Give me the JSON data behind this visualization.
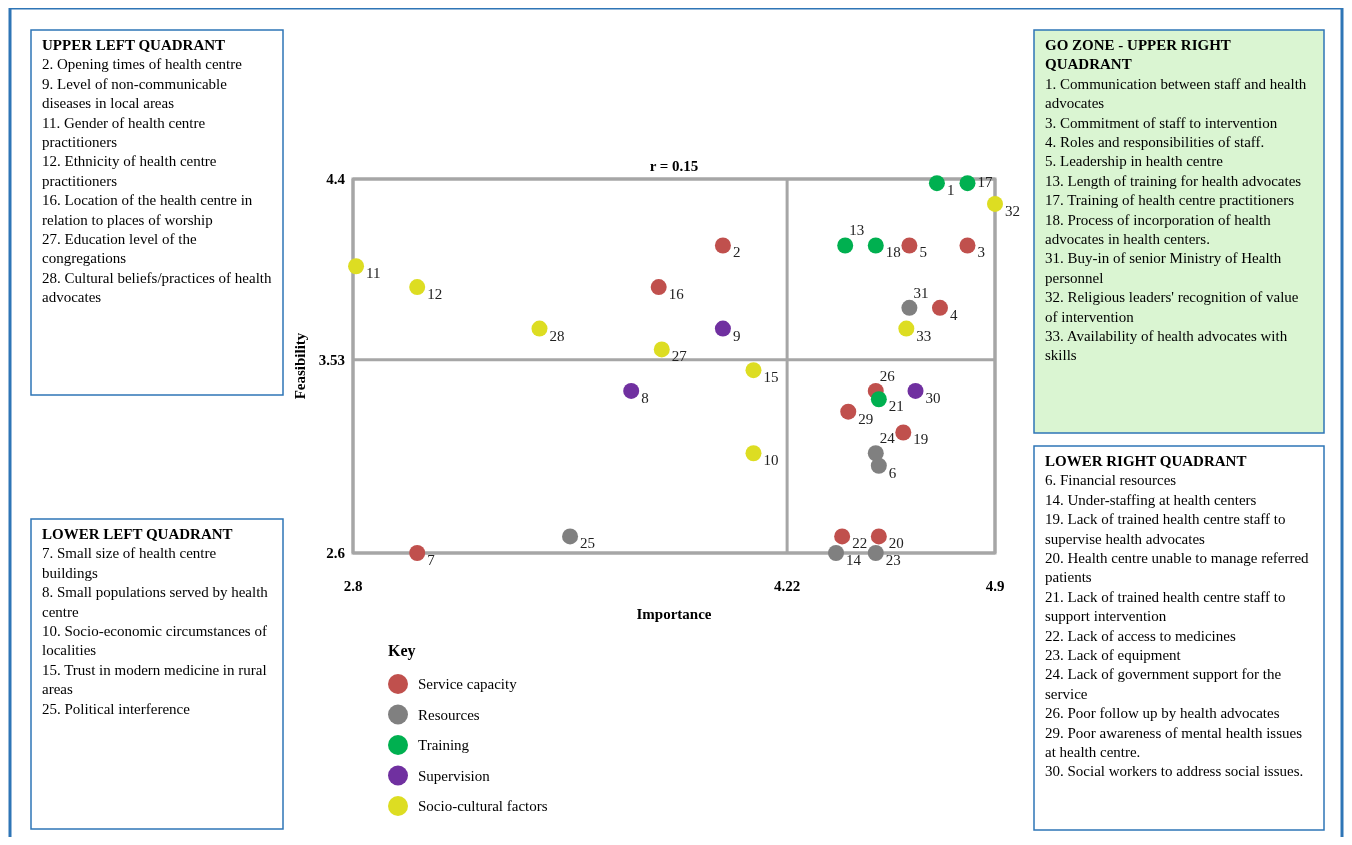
{
  "chart_data": [
    {
      "type": "scatter",
      "xlabel": "Importance",
      "ylabel": "Feasibility",
      "legend_title": "Key",
      "legend": "bottom left",
      "grid": true,
      "marker": "circle",
      "annotations": [
        "r = 0.15",
        {
          "text": "2",
          "x": 4.01,
          "y": 4.08
        },
        {
          "text": "3",
          "x": 4.81,
          "y": 4.08
        },
        {
          "text": "4",
          "x": 4.72,
          "y": 3.78
        },
        {
          "text": "5",
          "x": 4.62,
          "y": 4.08
        },
        {
          "text": "7",
          "x": 3.01,
          "y": 2.6
        },
        {
          "text": "16",
          "x": 3.8,
          "y": 3.88
        },
        {
          "text": "19",
          "x": 4.6,
          "y": 3.18
        },
        {
          "text": "20",
          "x": 4.52,
          "y": 2.68
        },
        {
          "text": "22",
          "x": 4.4,
          "y": 2.68
        },
        {
          "text": "26",
          "x": 4.51,
          "y": 3.38
        },
        {
          "text": "29",
          "x": 4.42,
          "y": 3.28
        },
        {
          "text": "6",
          "x": 4.52,
          "y": 3.02
        },
        {
          "text": "14",
          "x": 4.38,
          "y": 2.6
        },
        {
          "text": "23",
          "x": 4.51,
          "y": 2.6
        },
        {
          "text": "24",
          "x": 4.51,
          "y": 3.08
        },
        {
          "text": "25",
          "x": 3.51,
          "y": 2.68
        },
        {
          "text": "31",
          "x": 4.62,
          "y": 3.78
        },
        {
          "text": "1",
          "x": 4.71,
          "y": 4.38
        },
        {
          "text": "13",
          "x": 4.41,
          "y": 4.08
        },
        {
          "text": "17",
          "x": 4.81,
          "y": 4.38
        },
        {
          "text": "18",
          "x": 4.51,
          "y": 4.08
        },
        {
          "text": "21",
          "x": 4.52,
          "y": 3.34
        },
        {
          "text": "8",
          "x": 3.71,
          "y": 3.38
        },
        {
          "text": "9",
          "x": 4.01,
          "y": 3.68
        },
        {
          "text": "30",
          "x": 4.64,
          "y": 3.38
        },
        {
          "text": "10",
          "x": 4.11,
          "y": 3.08
        },
        {
          "text": "11",
          "x": 2.81,
          "y": 3.98
        },
        {
          "text": "12",
          "x": 3.01,
          "y": 3.88
        },
        {
          "text": "15",
          "x": 4.11,
          "y": 3.48
        },
        {
          "text": "27",
          "x": 3.81,
          "y": 3.58
        },
        {
          "text": "28",
          "x": 3.41,
          "y": 3.68
        },
        {
          "text": "32",
          "x": 4.9,
          "y": 4.28
        },
        {
          "text": "33",
          "x": 4.61,
          "y": 3.68
        }
      ],
      "xlim": [
        2.8,
        4.9
      ],
      "xticks": [
        2.8,
        4.22,
        4.9
      ],
      "ylim": [
        2.6,
        4.4
      ],
      "yticks": [
        2.6,
        3.53,
        4.4
      ],
      "series": [
        {
          "name": "Service capacity",
          "color": "#c0504d",
          "x": [
            4.01,
            4.81,
            4.72,
            4.62,
            3.01,
            3.8,
            4.6,
            4.52,
            4.4,
            4.51,
            4.42
          ],
          "values": [
            4.08,
            4.08,
            3.78,
            4.08,
            2.6,
            3.88,
            3.18,
            2.68,
            2.68,
            3.38,
            3.28
          ]
        },
        {
          "name": "Resources",
          "color": "#808080",
          "x": [
            4.52,
            4.38,
            4.51,
            4.51,
            3.51,
            4.62
          ],
          "values": [
            3.02,
            2.6,
            2.6,
            3.08,
            2.68,
            3.78
          ]
        },
        {
          "name": "Training",
          "color": "#00b050",
          "x": [
            4.71,
            4.41,
            4.81,
            4.51,
            4.52
          ],
          "values": [
            4.38,
            4.08,
            4.38,
            4.08,
            3.34
          ]
        },
        {
          "name": "Supervision",
          "color": "#7030a0",
          "x": [
            3.71,
            4.01,
            4.64
          ],
          "values": [
            3.38,
            3.68,
            3.38
          ]
        },
        {
          "name": "Socio-cultural factors",
          "color": "#dddd22",
          "x": [
            4.11,
            2.81,
            3.01,
            4.11,
            3.81,
            3.41,
            4.9,
            4.61
          ],
          "values": [
            3.08,
            3.98,
            3.88,
            3.48,
            3.58,
            3.68,
            4.28,
            3.68
          ]
        }
      ]
    },
    {
      "type": "other",
      "title": "UPPER LEFT QUADRANT",
      "annotations": [
        "2. Opening times of health centre",
        "9. Level of non-communicable diseases in local areas",
        "11. Gender of health centre practitioners",
        "12. Ethnicity of health centre practitioners",
        "16. Location of the health centre in relation to places of worship",
        "27. Education level of the congregations",
        "28. Cultural beliefs/practices of health advocates"
      ]
    },
    {
      "type": "other",
      "title": "LOWER LEFT QUADRANT",
      "annotations": [
        "7. Small size of health centre buildings",
        "8. Small populations served by health centre",
        "10. Socio-economic circumstances of localities",
        "15. Trust in modern medicine in rural areas",
        "25. Political interference"
      ]
    },
    {
      "type": "other",
      "title": "GO ZONE - UPPER RIGHT QUADRANT",
      "annotations": [
        "1. Communication between staff and health advocates",
        "3. Commitment of staff to intervention",
        "4. Roles and responsibilities of staff.",
        "5. Leadership in health centre",
        "13. Length of training for health advocates",
        "17. Training of health centre practitioners",
        "18. Process of incorporation of health advocates in health centers.",
        "31. Buy-in of senior Ministry of Health personnel",
        "32. Religious leaders' recognition of value of intervention",
        "33. Availability of health advocates with skills"
      ]
    },
    {
      "type": "other",
      "title": "LOWER RIGHT QUADRANT",
      "annotations": [
        "6. Financial resources",
        "14. Under-staffing at health centers",
        "19. Lack of trained health centre staff to supervise health advocates",
        "20. Health centre unable to manage referred patients",
        "21. Lack of trained health centre staff to support intervention",
        "22. Lack of access to medicines",
        "23. Lack of equipment",
        "24. Lack of government support for the service",
        "26. Poor follow up by health advocates",
        "29. Poor awareness of mental health issues at health centre.",
        "30. Social workers to address social issues."
      ]
    }
  ]
}
